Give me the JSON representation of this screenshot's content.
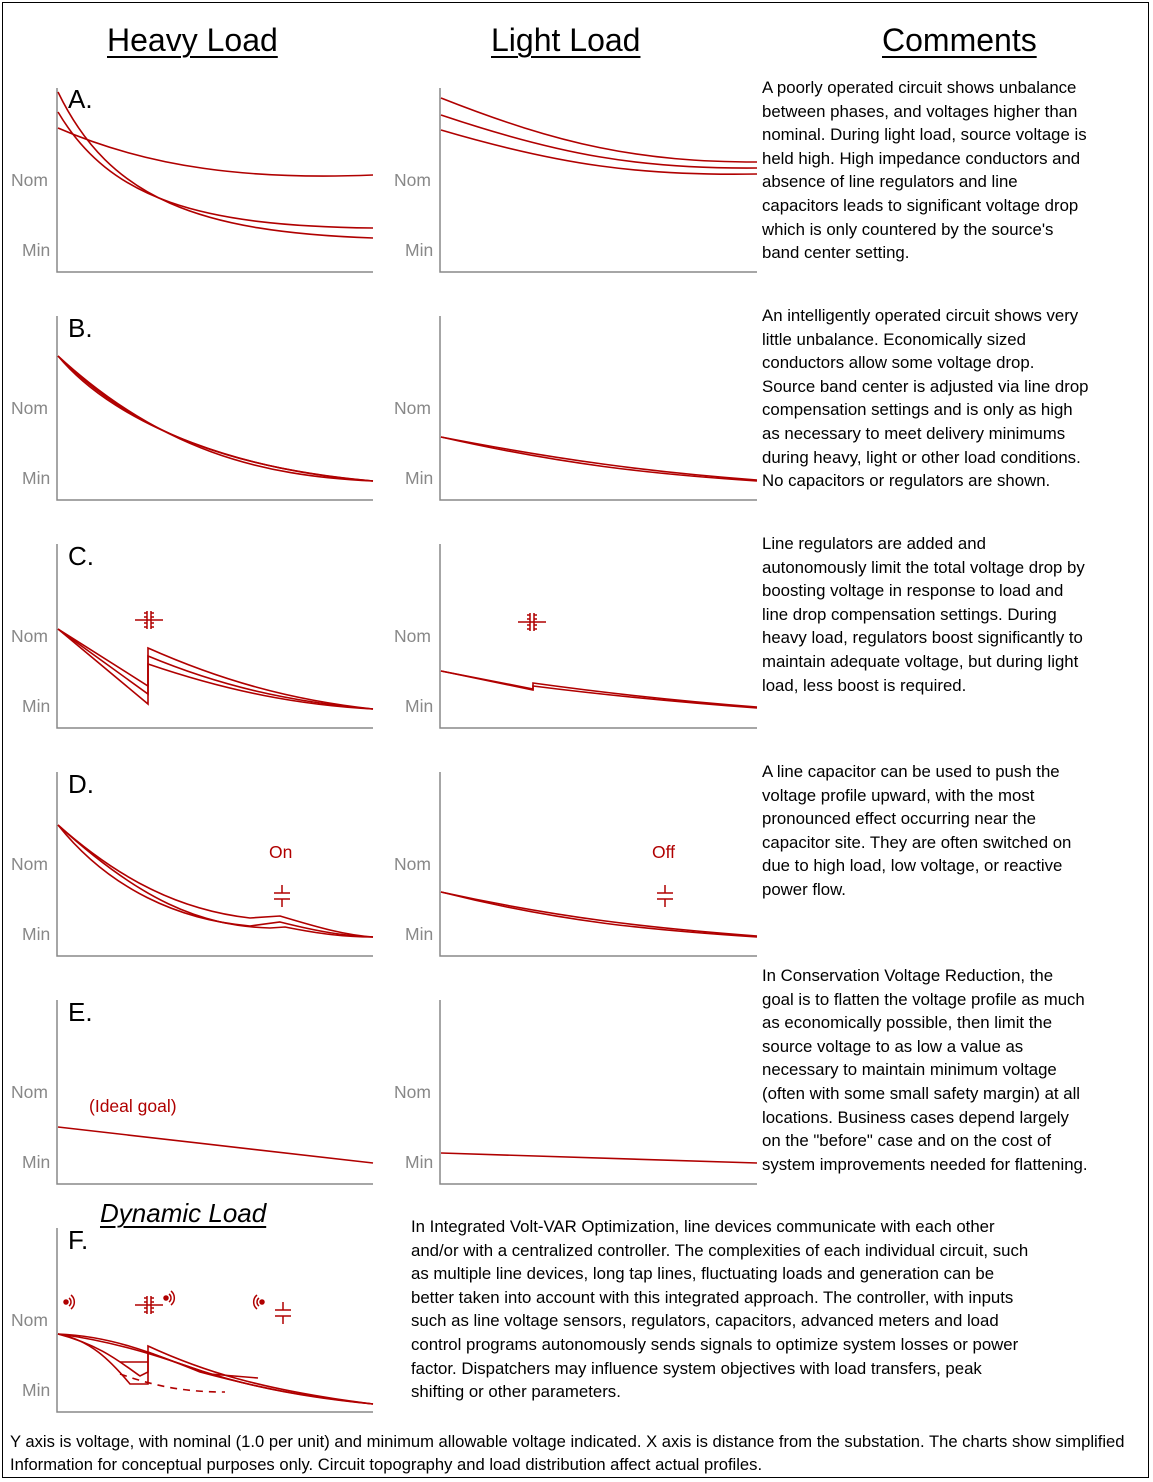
{
  "headers": {
    "heavy": "Heavy Load",
    "light": "Light Load",
    "comments": "Comments"
  },
  "axis_labels": {
    "nominal": "Nom",
    "minimum": "Min"
  },
  "colors": {
    "curve": "#b00000",
    "axis": "#888888",
    "text": "#000000"
  },
  "panels": [
    {
      "label": "A.",
      "comment": "A poorly operated circuit shows unbalance\nbetween phases, and voltages higher than\nnominal. During light load, source voltage is\nheld high. High impedance conductors and\nabsence of line regulators and line\ncapacitors leads to significant voltage drop\nwhich is only countered by the source's\nband center setting."
    },
    {
      "label": "B.",
      "comment": "An intelligently operated circuit shows very\nlittle unbalance. Economically sized\nconductors allow some voltage drop.\nSource band center is adjusted via line drop\ncompensation settings and is only as high\nas necessary to meet delivery minimums\nduring heavy, light or other load conditions.\nNo capacitors or regulators are shown."
    },
    {
      "label": "C.",
      "comment": "Line regulators are added and\nautonomously limit the total voltage drop by\nboosting voltage in response to load and\nline drop compensation settings. During\nheavy load, regulators boost significantly to\nmaintain adequate voltage, but during light\nload, less boost is required."
    },
    {
      "label": "D.",
      "comment": "A line capacitor can be used to push the\nvoltage profile upward, with the most\npronounced effect occurring near the\ncapacitor site. They are often switched on\ndue to high load, low voltage, or reactive\npower flow.",
      "heavy_note": "On",
      "light_note": "Off"
    },
    {
      "label": "E.",
      "comment": "In Conservation Voltage Reduction, the\ngoal is to flatten the voltage profile as much\nas economically possible, then limit the\nsource voltage to as low a value as\nnecessary to maintain minimum voltage\n(often with some small safety margin) at all\nlocations. Business cases depend largely\non the \"before\" case and on the cost of\nsystem improvements needed for flattening.",
      "heavy_note": "(Ideal goal)"
    },
    {
      "label": "F.",
      "title": "Dynamic Load",
      "comment": "In Integrated Volt-VAR Optimization, line devices communicate with each other\nand/or with a centralized controller. The complexities of each individual circuit, such\nas multiple line devices, long tap lines, fluctuating loads and generation can be\nbetter taken into account with this integrated approach. The controller, with inputs\nsuch as line voltage sensors, regulators, capacitors, advanced meters and load\ncontrol programs autonomously sends signals to optimize system losses or power\nfactor. Dispatchers may influence system objectives with load transfers, peak\nshifting or other parameters."
    }
  ],
  "footer": "Y axis is voltage, with nominal (1.0 per unit) and minimum allowable voltage indicated. X axis is distance from the substation. The charts show simplified Information for conceptual purposes only. Circuit topography and load distribution affect actual profiles.",
  "icons": [
    "regulator-icon",
    "capacitor-icon",
    "wireless-signal-icon"
  ]
}
